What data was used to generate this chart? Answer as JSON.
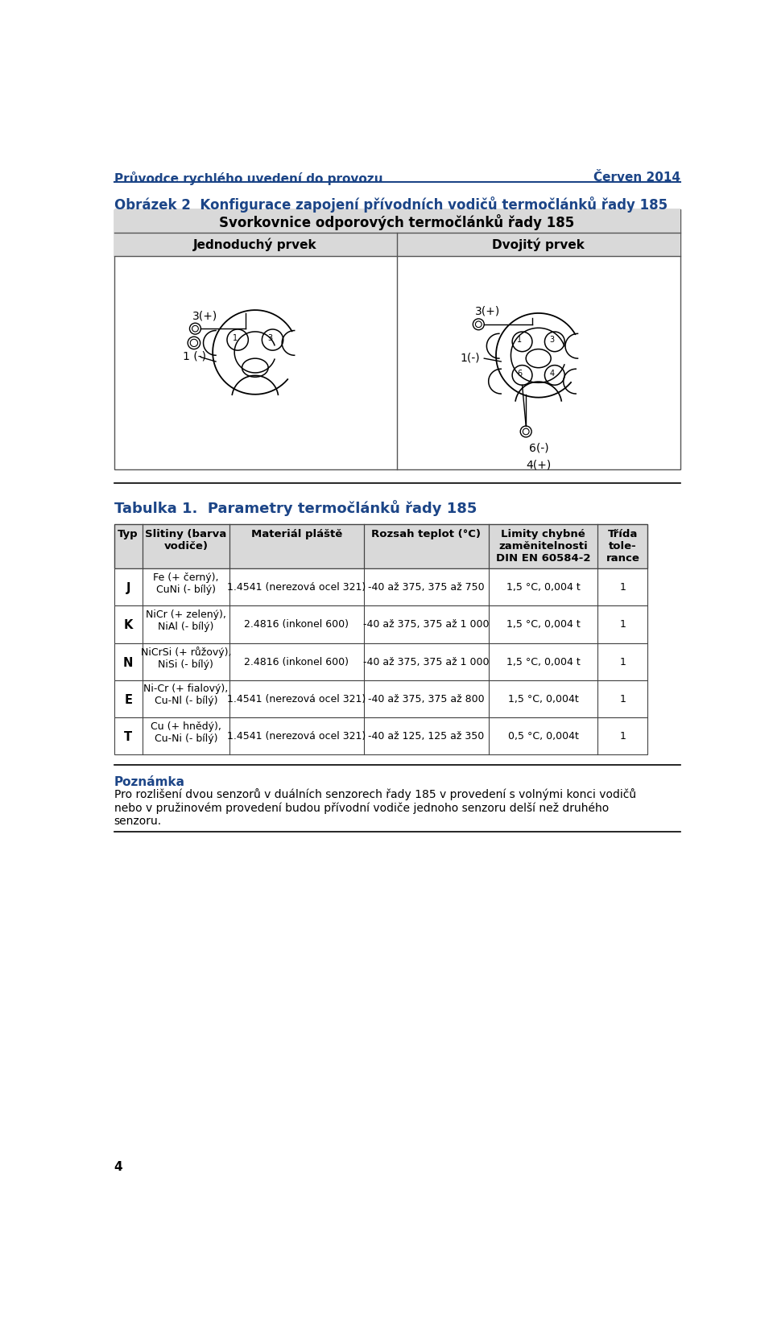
{
  "header_left": "Průvodce rychlého uvedení do provozu",
  "header_right": "Červen 2014",
  "fig2_title": "Obrázek 2  Konfigurace zapojení přívodních vodičů termočlánků řady 185",
  "box_title": "Svorkovnice odporových termočlánků řady 185",
  "col_left": "Jednoduchý prvek",
  "col_right": "Dvojitý prvek",
  "table_title": "Tabulka 1.  Parametry termočlánků řady 185",
  "col_headers": [
    "Typ",
    "Slitiny (barva\nvodiče)",
    "Materiál pláště",
    "Rozsah teplot (°C)",
    "Limity chybné\nzaměnitelnosti\nDIN EN 60584-2",
    "Třída\ntole-\nrance"
  ],
  "rows": [
    [
      "J",
      "Fe (+ černý),\nCuNi (- bílý)",
      "1.4541 (nerezová ocel 321)",
      "-40 až 375, 375 až 750",
      "1,5 °C, 0,004 t",
      "1"
    ],
    [
      "K",
      "NiCr (+ zelený),\nNiAl (- bílý)",
      "2.4816 (inkonel 600)",
      "-40 až 375, 375 až 1 000",
      "1,5 °C, 0,004 t",
      "1"
    ],
    [
      "N",
      "NiCrSi (+ růžový),\nNiSi (- bílý)",
      "2.4816 (inkonel 600)",
      "-40 až 375, 375 až 1 000",
      "1,5 °C, 0,004 t",
      "1"
    ],
    [
      "E",
      "Ni-Cr (+ fialový),\nCu-Nl (- bílý)",
      "1.4541 (nerezová ocel 321)",
      "-40 až 375, 375 až 800",
      "1,5 °C, 0,004t",
      "1"
    ],
    [
      "T",
      "Cu (+ hnědý),\nCu-Ni (- bílý)",
      "1.4541 (nerezová ocel 321)",
      "-40 až 125, 125 až 350",
      "0,5 °C, 0,004t",
      "1"
    ]
  ],
  "note_title": "Poznámka",
  "note_text": "Pro rozlišení dvou senzorů v duálních senzorech řady 185 v provedení s volnými konci vodičů\nnebo v pružinovém provedení budou přívodní vodiče jednoho senzoru delší než druhého\nsenzoru.",
  "page_number": "4",
  "blue": "#1c4587",
  "gray_bg": "#d9d9d9",
  "white": "#ffffff",
  "black": "#000000",
  "line_blue": "#1c4587"
}
